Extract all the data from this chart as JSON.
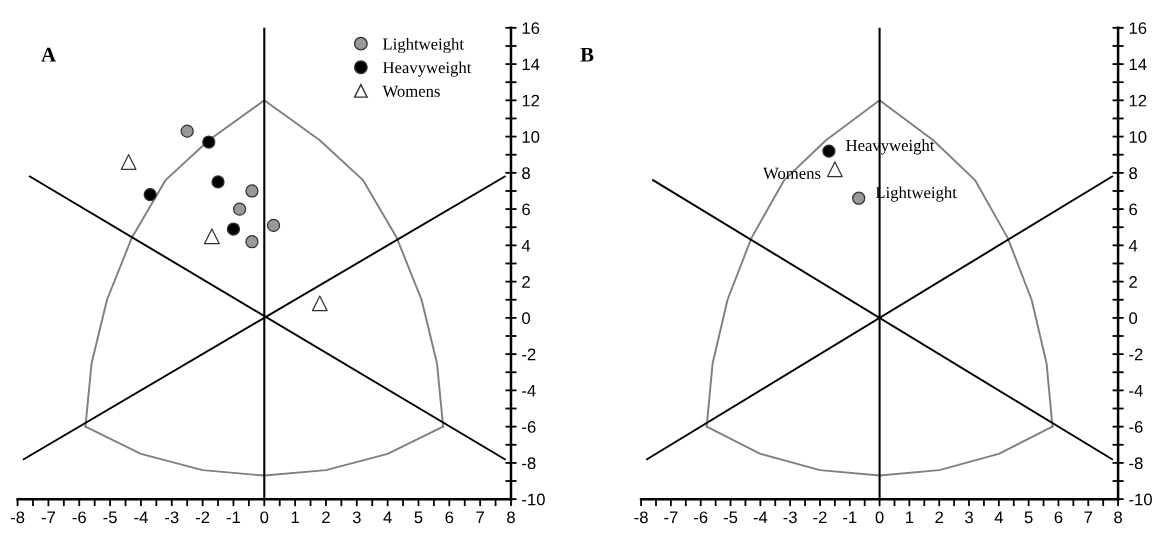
{
  "chart_data": [
    {
      "type": "scatter",
      "title": "A",
      "xlim": [
        -8,
        8
      ],
      "ylim": [
        -10,
        16
      ],
      "xticks": [
        -8,
        -7,
        -6,
        -5,
        -4,
        -3,
        -2,
        -1,
        0,
        1,
        2,
        3,
        4,
        5,
        6,
        7,
        8
      ],
      "yticks": [
        -10,
        -8,
        -6,
        -4,
        -2,
        0,
        2,
        4,
        6,
        8,
        10,
        12,
        14,
        16
      ],
      "legend": "top right",
      "grid": false,
      "ref_lines": [
        {
          "axis": "x",
          "value": 0,
          "color": "#000000",
          "line_style": "solid"
        }
      ],
      "series": [
        {
          "type": "line",
          "color": "#808080",
          "x": [
            0,
            -1.8,
            -3.2,
            -4.3,
            -5.1,
            -5.6,
            -5.8
          ],
          "values": [
            12,
            9.8,
            7.6,
            4.4,
            1,
            -2.5,
            -6
          ]
        },
        {
          "type": "line",
          "color": "#808080",
          "x": [
            0,
            1.8,
            3.2,
            4.3,
            5.1,
            5.6,
            5.8
          ],
          "values": [
            12,
            9.8,
            7.6,
            4.4,
            1,
            -2.5,
            -6
          ]
        },
        {
          "type": "line",
          "color": "#808080",
          "x": [
            -5.8,
            -4,
            -2,
            0,
            2,
            4,
            5.8
          ],
          "values": [
            -6,
            -7.5,
            -8.4,
            -8.7,
            -8.4,
            -7.5,
            -6
          ]
        },
        {
          "type": "line",
          "color": "#000000",
          "x": [
            -7.8,
            7.8
          ],
          "values": [
            -7.8,
            7.8
          ]
        },
        {
          "type": "line",
          "color": "#000000",
          "x": [
            -7.6,
            7.8
          ],
          "values": [
            7.8,
            -7.8
          ]
        },
        {
          "name": "Lightweight",
          "color": "#999999",
          "marker": "circle",
          "x": [
            -2.5,
            -0.4,
            -0.8,
            -0.4,
            0.3
          ],
          "values": [
            10.3,
            7.0,
            6.0,
            4.2,
            5.1
          ]
        },
        {
          "name": "Heavyweight",
          "color": "#000000",
          "marker": "circle",
          "x": [
            -1.8,
            -3.7,
            -1.5,
            -1.0
          ],
          "values": [
            9.7,
            6.8,
            7.5,
            4.9
          ]
        },
        {
          "name": "Womens",
          "color": "#ffffff",
          "marker": "triangle",
          "x": [
            -4.4,
            -1.7,
            1.8
          ],
          "values": [
            8.6,
            4.5,
            0.8
          ]
        }
      ]
    },
    {
      "type": "scatter",
      "title": "B",
      "xlim": [
        -8,
        8
      ],
      "ylim": [
        -10,
        16
      ],
      "xticks": [
        -8,
        -7,
        -6,
        -5,
        -4,
        -3,
        -2,
        -1,
        0,
        1,
        2,
        3,
        4,
        5,
        6,
        7,
        8
      ],
      "yticks": [
        -10,
        -8,
        -6,
        -4,
        -2,
        0,
        2,
        4,
        6,
        8,
        10,
        12,
        14,
        16
      ],
      "grid": false,
      "ref_lines": [
        {
          "axis": "x",
          "value": 0,
          "color": "#000000",
          "line_style": "solid"
        }
      ],
      "series": [
        {
          "type": "line",
          "color": "#808080",
          "x": [
            0,
            -1.8,
            -3.2,
            -4.3,
            -5.1,
            -5.6,
            -5.8
          ],
          "values": [
            12,
            9.8,
            7.6,
            4.4,
            1,
            -2.5,
            -6
          ]
        },
        {
          "type": "line",
          "color": "#808080",
          "x": [
            0,
            1.8,
            3.2,
            4.3,
            5.1,
            5.6,
            5.8
          ],
          "values": [
            12,
            9.8,
            7.6,
            4.4,
            1,
            -2.5,
            -6
          ]
        },
        {
          "type": "line",
          "color": "#808080",
          "x": [
            -5.8,
            -4,
            -2,
            0,
            2,
            4,
            5.8
          ],
          "values": [
            -6,
            -7.5,
            -8.4,
            -8.7,
            -8.4,
            -7.5,
            -6
          ]
        },
        {
          "type": "line",
          "color": "#000000",
          "x": [
            -7.8,
            7.8
          ],
          "values": [
            -7.8,
            7.8
          ]
        },
        {
          "type": "line",
          "color": "#000000",
          "x": [
            -7.6,
            7.8
          ],
          "values": [
            7.6,
            -7.8
          ]
        },
        {
          "name": "Heavyweight",
          "color": "#000000",
          "marker": "circle",
          "x": [
            -1.7
          ],
          "values": [
            9.2
          ]
        },
        {
          "name": "Womens",
          "color": "#ffffff",
          "marker": "triangle",
          "x": [
            -1.5
          ],
          "values": [
            8.2
          ]
        },
        {
          "name": "Lightweight",
          "color": "#999999",
          "marker": "circle",
          "x": [
            -0.7
          ],
          "values": [
            6.6
          ]
        }
      ]
    }
  ]
}
